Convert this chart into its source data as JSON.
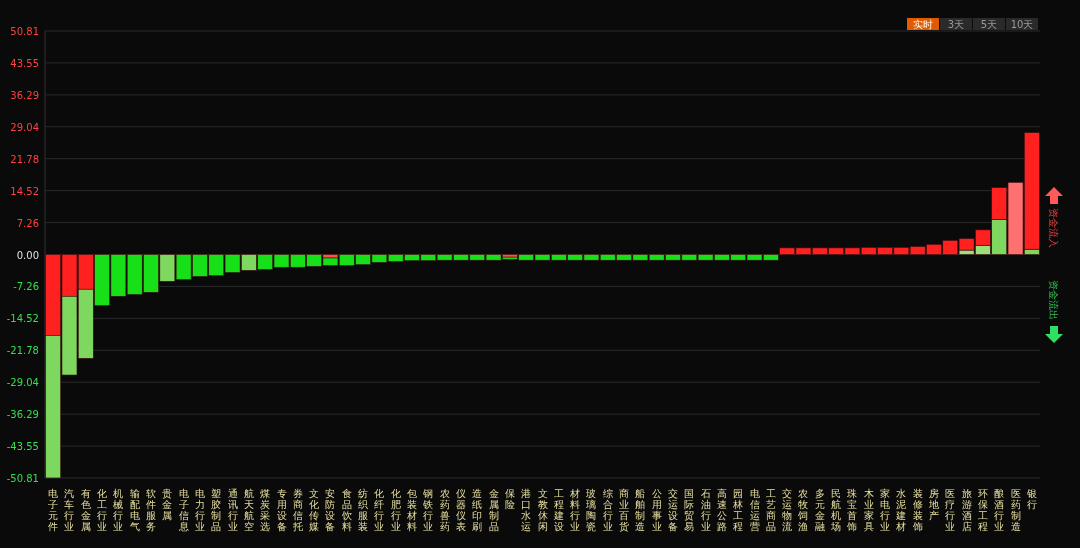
{
  "chart_data": {
    "type": "bar",
    "stacked": true,
    "grid": "y",
    "categories": [
      "电子元件",
      "汽车行业",
      "有色金属",
      "化工行业",
      "机械行业",
      "输配电气",
      "软件服务",
      "贵金属",
      "电子信息",
      "电力行业",
      "塑胶制品",
      "通讯行业",
      "航天航空",
      "煤炭采选",
      "专用设备",
      "券商信托",
      "文化传媒",
      "安防设备",
      "食品饮料",
      "纺织服装",
      "化纤行业",
      "化肥行业",
      "包装材料",
      "钢铁行业",
      "农药兽药",
      "仪器仪表",
      "造纸印刷",
      "金属制品",
      "保险",
      "港口水运",
      "文教休闲",
      "工程建设",
      "材料行业",
      "玻璃陶瓷",
      "综合行业",
      "商业百货",
      "船舶制造",
      "公用事业",
      "交运设备",
      "国际贸易",
      "石油行业",
      "高速公路",
      "园林工程",
      "电信运营",
      "工艺商品",
      "交运物流",
      "农牧饲渔",
      "多元金融",
      "民航机场",
      "珠宝首饰",
      "木业家具",
      "家电行业",
      "水泥建材",
      "装修装饰",
      "房地产",
      "医疗行业",
      "旅游酒店",
      "环保工程",
      "酿酒行业",
      "医药制造",
      "银行"
    ],
    "series": [
      {
        "values": [
          -18.4,
          -9.5,
          -7.9,
          -11.6,
          -9.5,
          -9.1,
          -8.6,
          -6.1,
          -5.7,
          -5.0,
          -4.8,
          -4.1,
          -3.6,
          -3.4,
          -2.9,
          -2.9,
          -2.7,
          -0.8,
          -2.5,
          -2.3,
          -1.8,
          -1.6,
          -1.4,
          -1.4,
          -1.3,
          -1.3,
          -1.3,
          -1.3,
          -0.6,
          -1.3,
          -1.3,
          -1.3,
          -1.3,
          -1.3,
          -1.3,
          -1.3,
          -1.3,
          -1.3,
          -1.3,
          -1.3,
          -1.3,
          -1.3,
          -1.3,
          -1.3,
          -1.3,
          1.5,
          1.5,
          1.5,
          1.5,
          1.5,
          1.6,
          1.6,
          1.6,
          1.8,
          2.3,
          3.2,
          1.0,
          2.1,
          8.0,
          16.4,
          1.2
        ],
        "colors": [
          "#ff2020",
          "#ff2020",
          "#ff2020",
          "#18e018",
          "#18e018",
          "#18e018",
          "#18e018",
          "#7ed860",
          "#18e018",
          "#18e018",
          "#18e018",
          "#18e018",
          "#7ed860",
          "#18e018",
          "#18e018",
          "#18e018",
          "#18e018",
          "#ff5050",
          "#18e018",
          "#18e018",
          "#18e018",
          "#18e018",
          "#18e018",
          "#18e018",
          "#18e018",
          "#18e018",
          "#18e018",
          "#18e018",
          "#ff5050",
          "#18e018",
          "#18e018",
          "#18e018",
          "#18e018",
          "#18e018",
          "#18e018",
          "#18e018",
          "#18e018",
          "#18e018",
          "#18e018",
          "#18e018",
          "#18e018",
          "#18e018",
          "#18e018",
          "#18e018",
          "#18e018",
          "#ff2020",
          "#ff2020",
          "#ff2020",
          "#ff2020",
          "#ff2020",
          "#ff2020",
          "#ff2020",
          "#ff2020",
          "#ff2020",
          "#ff2020",
          "#ff2020",
          "#9be07a",
          "#9be07a",
          "#7ed860",
          "#ff7070",
          "#7ed860"
        ]
      },
      {
        "values": [
          -32.4,
          -17.9,
          -15.7,
          null,
          null,
          null,
          null,
          null,
          null,
          null,
          null,
          null,
          null,
          null,
          null,
          null,
          null,
          -1.7,
          null,
          null,
          null,
          null,
          null,
          null,
          null,
          null,
          null,
          null,
          -0.5,
          null,
          null,
          null,
          null,
          null,
          null,
          null,
          null,
          null,
          null,
          null,
          null,
          null,
          null,
          null,
          null,
          null,
          null,
          null,
          null,
          null,
          null,
          null,
          null,
          null,
          null,
          null,
          2.6,
          3.5,
          7.2,
          null,
          26.5
        ],
        "colors": [
          "#7ed860",
          "#7ed860",
          "#7ed860",
          null,
          null,
          null,
          null,
          null,
          null,
          null,
          null,
          null,
          null,
          null,
          null,
          null,
          null,
          "#18e018",
          null,
          null,
          null,
          null,
          null,
          null,
          null,
          null,
          null,
          null,
          "#18e018",
          null,
          null,
          null,
          null,
          null,
          null,
          null,
          null,
          null,
          null,
          null,
          null,
          null,
          null,
          null,
          null,
          null,
          null,
          null,
          null,
          null,
          null,
          null,
          null,
          null,
          null,
          null,
          "#ff2020",
          "#ff2020",
          "#ff2020",
          null,
          "#ff2020"
        ]
      }
    ],
    "ylim": [
      -50.81,
      50.81
    ],
    "yticks": [
      50.81,
      43.55,
      36.29,
      29.04,
      21.78,
      14.52,
      7.26,
      {
        "value": 0,
        "label": "0.00"
      },
      -7.26,
      -14.52,
      -21.78,
      -29.04,
      -36.29,
      -43.55,
      -50.81
    ],
    "annotations": [
      "实时",
      "3天",
      "5天",
      "10天",
      "资金流入",
      "资金流出"
    ]
  }
}
